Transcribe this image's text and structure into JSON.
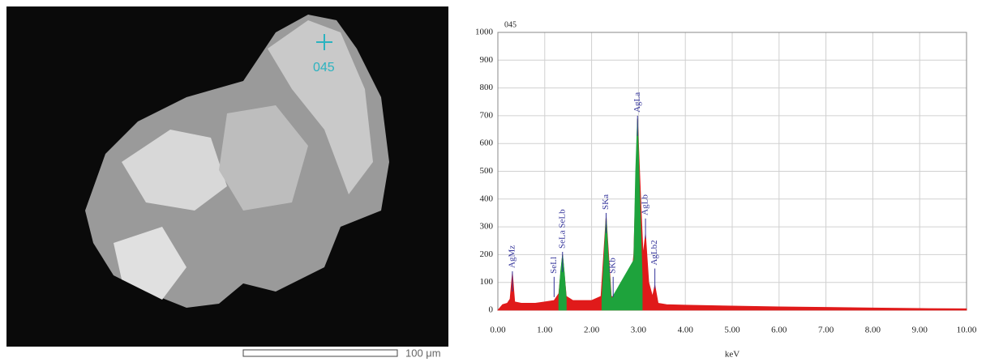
{
  "image": {
    "label": "045",
    "scale_label": "100 μm"
  },
  "chart_data": {
    "type": "area",
    "title": "045",
    "xlabel": "keV",
    "xlim": [
      0,
      10
    ],
    "ylim": [
      0,
      1000
    ],
    "xticks": [
      {
        "value": 0,
        "label": "0.00"
      },
      {
        "value": 1,
        "label": "1.00"
      },
      {
        "value": 2,
        "label": "2.00"
      },
      {
        "value": 3,
        "label": "3.00"
      },
      {
        "value": 4,
        "label": "4.00"
      },
      {
        "value": 5,
        "label": "5.00"
      },
      {
        "value": 6,
        "label": "6.00"
      },
      {
        "value": 7,
        "label": "7.00"
      },
      {
        "value": 8,
        "label": "8.00"
      },
      {
        "value": 9,
        "label": "9.00"
      },
      {
        "value": 10,
        "label": "10.00"
      }
    ],
    "yticks": [
      0,
      100,
      200,
      300,
      400,
      500,
      600,
      700,
      800,
      900,
      1000
    ],
    "grid": true,
    "series": [
      {
        "color": "#e01a1a",
        "x": [
          0,
          0.1,
          0.2,
          0.26,
          0.31,
          0.36,
          0.5,
          0.8,
          1.0,
          1.2,
          1.3,
          1.38,
          1.46,
          1.6,
          1.8,
          2.0,
          2.2,
          2.31,
          2.42,
          2.6,
          2.8,
          2.9,
          2.98,
          3.06,
          3.1,
          3.15,
          3.22,
          3.3,
          3.35,
          3.42,
          3.6,
          4,
          5,
          6,
          7,
          8,
          9,
          10
        ],
        "values": [
          0,
          20,
          25,
          40,
          135,
          30,
          25,
          25,
          30,
          35,
          60,
          200,
          50,
          35,
          35,
          35,
          50,
          340,
          50,
          40,
          45,
          200,
          690,
          350,
          200,
          275,
          100,
          50,
          90,
          25,
          20,
          18,
          15,
          12,
          10,
          8,
          6,
          5
        ]
      },
      {
        "color": "#1ea33c",
        "x": [
          1.3,
          1.34,
          1.38,
          1.42,
          1.46,
          2.0,
          2.22,
          2.27,
          2.31,
          2.35,
          2.42,
          2.9,
          2.94,
          2.98,
          3.02,
          3.08
        ],
        "values": [
          50,
          140,
          200,
          130,
          40,
          null,
          40,
          200,
          340,
          210,
          40,
          180,
          500,
          690,
          450,
          120
        ]
      }
    ],
    "annotations": [
      {
        "text": "AgMz",
        "x": 0.31,
        "y": 140
      },
      {
        "text": "SeLl",
        "x": 1.2,
        "y": 120
      },
      {
        "text": "SeLa SeLb",
        "x": 1.38,
        "y": 210
      },
      {
        "text": "SKa",
        "x": 2.31,
        "y": 350
      },
      {
        "text": "SKb",
        "x": 2.46,
        "y": 120
      },
      {
        "text": "AgLa",
        "x": 2.98,
        "y": 700
      },
      {
        "text": "AgLb",
        "x": 3.15,
        "y": 330
      },
      {
        "text": "AgLb2",
        "x": 3.35,
        "y": 150
      }
    ]
  }
}
